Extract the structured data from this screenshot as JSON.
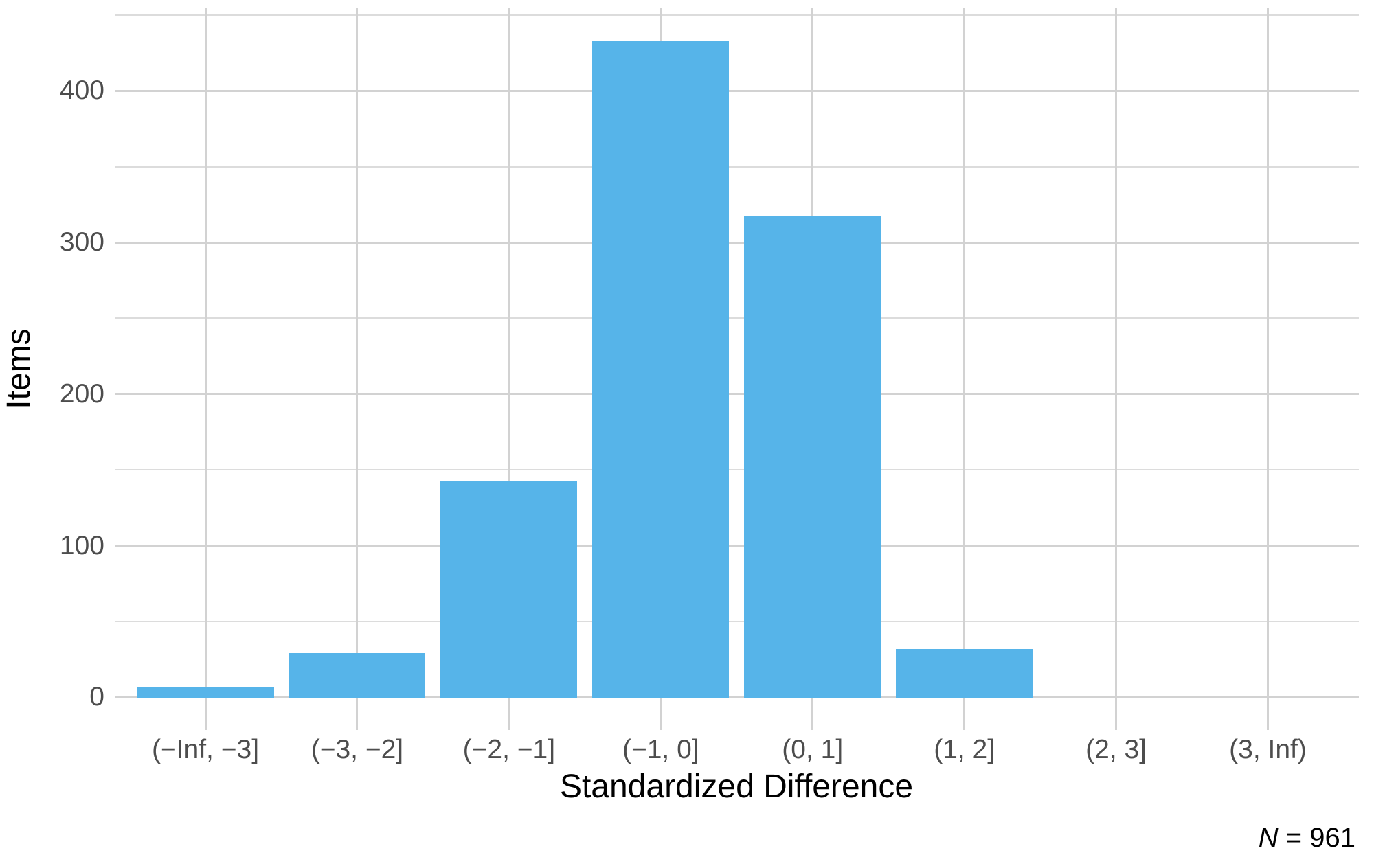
{
  "chart_data": {
    "type": "bar",
    "title": "",
    "xlabel": "Standardized Difference",
    "ylabel": "Items",
    "categories": [
      "(−Inf, −3]",
      "(−3, −2]",
      "(−2, −1]",
      "(−1, 0]",
      "(0, 1]",
      "(1, 2]",
      "(2, 3]",
      "(3, Inf)"
    ],
    "values": [
      7,
      29,
      143,
      433,
      317,
      32,
      0,
      0
    ],
    "n_total": 961,
    "caption": {
      "symbol": "N",
      "rest": " = 961"
    },
    "y_ticks": [
      0,
      100,
      200,
      300,
      400
    ],
    "y_minor_ticks": [
      50,
      150,
      250,
      350,
      450
    ],
    "ylim": [
      0,
      455
    ],
    "grid": "major+minor, light grey on white",
    "legend": "none",
    "bar_color": "#56B4E9",
    "tick_label_color": "#4d4d4d",
    "axis_title_color": "#000000"
  }
}
